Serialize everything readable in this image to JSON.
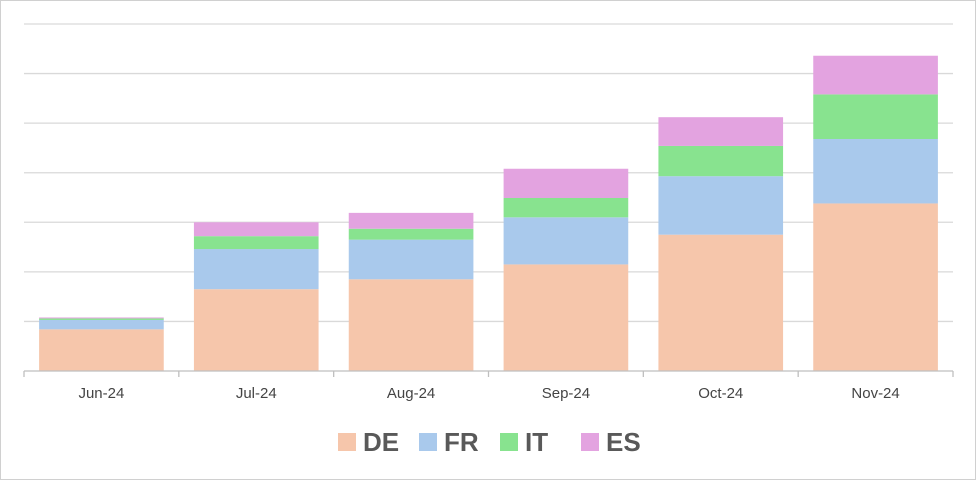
{
  "chart_data": {
    "type": "bar",
    "stacked": true,
    "title": "",
    "xlabel": "",
    "ylabel": "",
    "categories": [
      "Jun-24",
      "Jul-24",
      "Aug-24",
      "Sep-24",
      "Oct-24",
      "Nov-24"
    ],
    "series": [
      {
        "name": "DE",
        "color": "#F6C6AB",
        "values": [
          8.4,
          16.5,
          18.5,
          21.5,
          27.5,
          33.8
        ]
      },
      {
        "name": "FR",
        "color": "#A9C9EC",
        "values": [
          1.9,
          8.1,
          8.0,
          9.5,
          11.8,
          13.0
        ]
      },
      {
        "name": "IT",
        "color": "#88E38F",
        "values": [
          0.3,
          2.6,
          2.2,
          3.9,
          6.1,
          9.0
        ]
      },
      {
        "name": "ES",
        "color": "#E3A3E0",
        "values": [
          0.2,
          2.8,
          3.2,
          5.9,
          5.8,
          7.8
        ]
      }
    ],
    "ylim": [
      0,
      70
    ],
    "ytick_step": 10,
    "show_ytick_labels": false,
    "grid": true,
    "legend_position": "bottom"
  }
}
